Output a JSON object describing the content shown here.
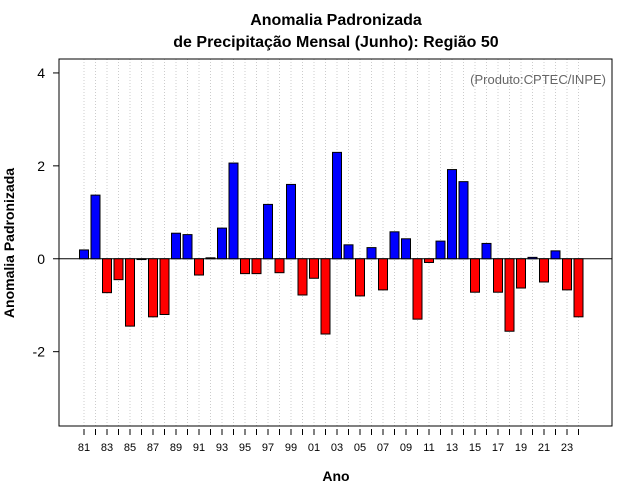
{
  "chart_data": {
    "type": "bar",
    "title_line1": "Anomalia Padronizada",
    "title_line2": "de Precipitação Mensal (Junho): Região 50",
    "annotation": "(Produto:CPTEC/INPE)",
    "xlabel": "Ano",
    "ylabel": "Anomalia Padronizada",
    "ylim": [
      -3.6,
      4.3
    ],
    "yticks": [
      -2,
      0,
      2,
      4
    ],
    "ytick_labels": [
      "-2",
      "0",
      "2",
      "4"
    ],
    "xtick_labels": [
      "81",
      "83",
      "85",
      "87",
      "89",
      "91",
      "93",
      "95",
      "97",
      "99",
      "01",
      "03",
      "05",
      "07",
      "09",
      "11",
      "13",
      "15",
      "17",
      "19",
      "21",
      "23"
    ],
    "grid": "vertical dotted",
    "colors": {
      "positive": "#0000ff",
      "negative": "#ff0000",
      "grid": "#cccccc",
      "axis": "#000000",
      "annotation": "#666666"
    },
    "categories": [
      "1981",
      "1982",
      "1983",
      "1984",
      "1985",
      "1986",
      "1987",
      "1988",
      "1989",
      "1990",
      "1991",
      "1992",
      "1993",
      "1994",
      "1995",
      "1996",
      "1997",
      "1998",
      "1999",
      "2000",
      "2001",
      "2002",
      "2003",
      "2004",
      "2005",
      "2006",
      "2007",
      "2008",
      "2009",
      "2010",
      "2011",
      "2012",
      "2013",
      "2014",
      "2015",
      "2016",
      "2017",
      "2018",
      "2019",
      "2020",
      "2021",
      "2022",
      "2023",
      "2024"
    ],
    "values": [
      0.19,
      1.37,
      -0.73,
      -0.45,
      -1.45,
      0.0,
      -1.25,
      -1.2,
      0.55,
      0.52,
      -0.35,
      0.02,
      0.66,
      2.06,
      -0.32,
      -0.32,
      1.17,
      -0.3,
      1.6,
      -0.78,
      -0.42,
      -1.62,
      2.29,
      0.3,
      -0.8,
      0.24,
      -0.67,
      0.58,
      0.43,
      -1.3,
      -0.08,
      0.38,
      1.92,
      1.66,
      -0.72,
      0.33,
      -0.72,
      -1.56,
      -0.63,
      0.03,
      -0.5,
      0.17,
      -0.67,
      -1.25
    ]
  }
}
